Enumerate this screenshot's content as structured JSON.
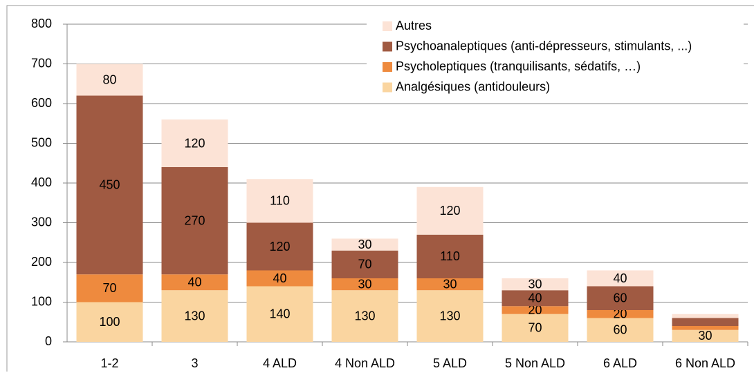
{
  "chart_data": {
    "type": "stacked_bar",
    "categories": [
      "1-2",
      "3",
      "4 ALD",
      "4 Non ALD",
      "5 ALD",
      "5 Non ALD",
      "6 ALD",
      "6 Non ALD"
    ],
    "series": [
      {
        "name": "Analgésiques (antidouleurs)",
        "color": "#fad5a0",
        "values": [
          100,
          130,
          140,
          130,
          130,
          70,
          60,
          30
        ],
        "value_labels": [
          "100",
          "130",
          "140",
          "130",
          "130",
          "70",
          "60",
          "30"
        ]
      },
      {
        "name": "Psycholeptiques (tranquilisants, sédatifs, …)",
        "color": "#ee8a3e",
        "values": [
          70,
          40,
          40,
          30,
          30,
          20,
          20,
          10
        ],
        "value_labels": [
          "70",
          "40",
          "40",
          "30",
          "30",
          "20",
          "20",
          null
        ]
      },
      {
        "name": "Psychoanaleptiques (anti-dépresseurs, stimulants, ...)",
        "color": "#a05a42",
        "values": [
          450,
          270,
          120,
          70,
          110,
          40,
          60,
          20
        ],
        "value_labels": [
          "450",
          "270",
          "120",
          "70",
          "110",
          "40",
          "60",
          null
        ]
      },
      {
        "name": "Autres",
        "color": "#fce3d6",
        "values": [
          80,
          120,
          110,
          30,
          120,
          30,
          40,
          10
        ],
        "value_labels": [
          "80",
          "120",
          "110",
          "30",
          "120",
          "30",
          "40",
          null
        ]
      }
    ],
    "ylim": [
      0,
      800
    ],
    "yticks": [
      0,
      100,
      200,
      300,
      400,
      500,
      600,
      700,
      800
    ],
    "grid": true,
    "legend": "top-right"
  }
}
